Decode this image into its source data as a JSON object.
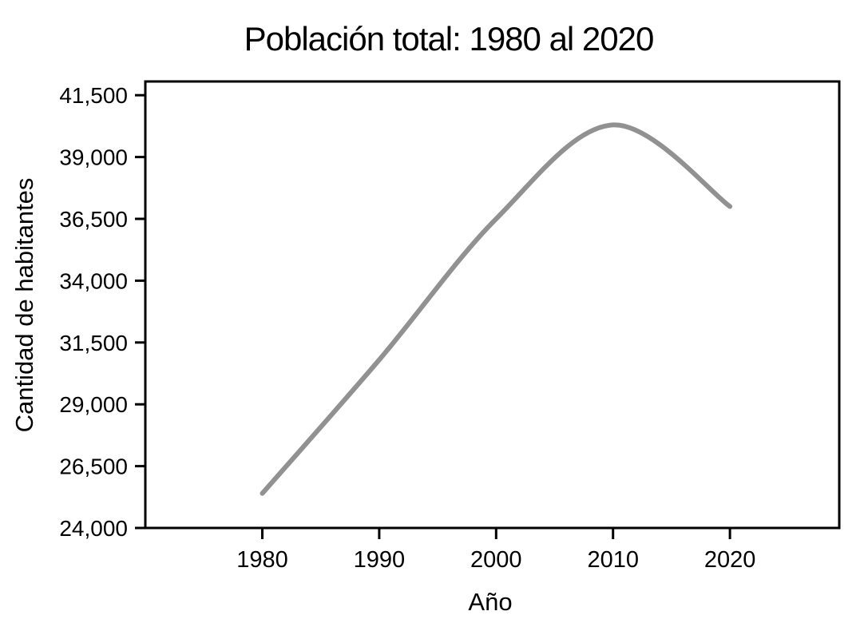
{
  "chart_data": {
    "type": "line",
    "title": "Población total: 1980 al 2020",
    "xlabel": "Año",
    "ylabel": "Cantidad de habitantes",
    "x": [
      1980,
      1990,
      2000,
      2010,
      2020
    ],
    "values": [
      25400,
      30800,
      36500,
      40300,
      37000
    ],
    "xticks": [
      1980,
      1990,
      2000,
      2010,
      2020
    ],
    "xtick_labels": [
      "1980",
      "1990",
      "2000",
      "2010",
      "2020"
    ],
    "ytick_values": [
      24000,
      26500,
      29000,
      31500,
      34000,
      36500,
      39000,
      41500
    ],
    "ytick_labels": [
      "24,000",
      "26,500",
      "29,000",
      "31,500",
      "34,000",
      "36,500",
      "39,000",
      "41,500"
    ],
    "xlim": [
      1970,
      2030
    ],
    "ylim": [
      24000,
      42000
    ],
    "grid": false,
    "legend": false,
    "smooth": true,
    "line_color": "#919191",
    "axis_color": "#000000",
    "text_color": "#000000",
    "background": "#ffffff"
  }
}
